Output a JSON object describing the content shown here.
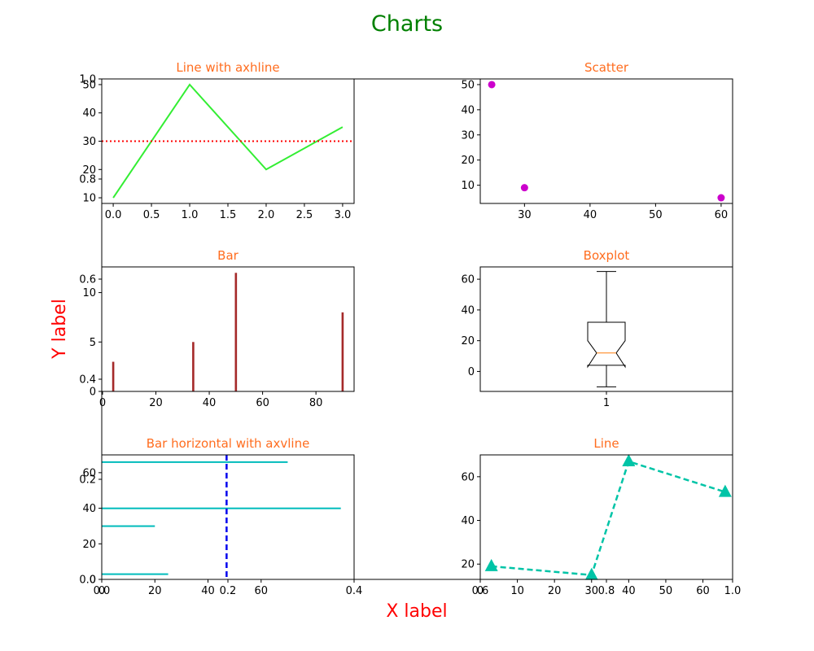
{
  "figure": {
    "suptitle": "Charts",
    "xlabel": "X label",
    "ylabel": "Y label",
    "colors": {
      "suptitle": "#008000",
      "axis_label": "#ff0000",
      "subplot_title": "#ff6d1f"
    }
  },
  "background_axes": {
    "xticks": [
      "0.0",
      "0.2",
      "0.4",
      "0.6",
      "0.8",
      "1.0"
    ],
    "yticks": [
      "0.0",
      "0.2",
      "0.4",
      "0.6",
      "0.8",
      "1.0"
    ],
    "xlim": [
      0,
      1
    ],
    "ylim": [
      0,
      1
    ]
  },
  "chart_data": [
    {
      "type": "line",
      "title": "Line with axhline",
      "x": [
        0,
        1,
        2,
        3
      ],
      "y": [
        10,
        50,
        20,
        35
      ],
      "color": "#33ee33",
      "axhline": {
        "y": 30,
        "color": "#ff0000",
        "style": "dotted"
      },
      "xlim": [
        -0.15,
        3.15
      ],
      "ylim": [
        8,
        52
      ],
      "xticks": [
        "0.0",
        "0.5",
        "1.0",
        "1.5",
        "2.0",
        "2.5",
        "3.0"
      ],
      "yticks": [
        "10",
        "20",
        "30",
        "40",
        "50"
      ],
      "grid": false
    },
    {
      "type": "scatter",
      "title": "Scatter",
      "x": [
        25,
        30,
        60
      ],
      "y": [
        50,
        9,
        5
      ],
      "color": "#cc00cc",
      "xlim": [
        23.25,
        61.75
      ],
      "ylim": [
        2.75,
        52.25
      ],
      "xticks": [
        "30",
        "40",
        "50",
        "60"
      ],
      "yticks": [
        "10",
        "20",
        "30",
        "40",
        "50"
      ],
      "grid": false
    },
    {
      "type": "bar",
      "title": "Bar",
      "x": [
        4,
        34,
        50,
        90
      ],
      "values": [
        3,
        5,
        12,
        8
      ],
      "color": "#a52a2a",
      "xlim": [
        -0.3,
        94.3
      ],
      "ylim": [
        0,
        12.6
      ],
      "xticks": [
        "0",
        "20",
        "40",
        "60",
        "80"
      ],
      "yticks": [
        "0",
        "5",
        "10"
      ],
      "grid": false
    },
    {
      "type": "boxplot",
      "title": "Boxplot",
      "notch": true,
      "stats": {
        "whislo": -10,
        "q1": 4,
        "notch_low": 3,
        "median": 12,
        "notch_high": 20,
        "q3": 32,
        "whishi": 65
      },
      "median_color": "#ff7f0e",
      "xlim": [
        0.5,
        1.5
      ],
      "ylim": [
        -13,
        68
      ],
      "xticks": [
        "1"
      ],
      "yticks": [
        "0",
        "20",
        "40",
        "60"
      ],
      "grid": false
    },
    {
      "type": "bar",
      "orientation": "horizontal",
      "title": "Bar horizontal  with axvline",
      "y": [
        3,
        30,
        40,
        66
      ],
      "values": [
        25,
        20,
        90,
        70
      ],
      "color": "#00bbbb",
      "axvline": {
        "x": 47,
        "color": "#0000ee",
        "style": "dashed"
      },
      "xlim": [
        0,
        95
      ],
      "ylim": [
        0,
        70
      ],
      "xticks": [
        "0",
        "20",
        "40",
        "60"
      ],
      "yticks": [
        "0",
        "20",
        "40",
        "60"
      ],
      "grid": false
    },
    {
      "type": "line",
      "title": "Line",
      "x": [
        3,
        30,
        40,
        66
      ],
      "y": [
        19,
        15,
        67,
        53
      ],
      "color": "#00c4a7",
      "linestyle": "dashed",
      "marker": "triangle",
      "xlim": [
        0,
        68
      ],
      "ylim": [
        13,
        70
      ],
      "xticks": [
        "0",
        "10",
        "20",
        "30",
        "40",
        "50",
        "60"
      ],
      "yticks": [
        "20",
        "40",
        "60"
      ],
      "grid": false
    }
  ]
}
